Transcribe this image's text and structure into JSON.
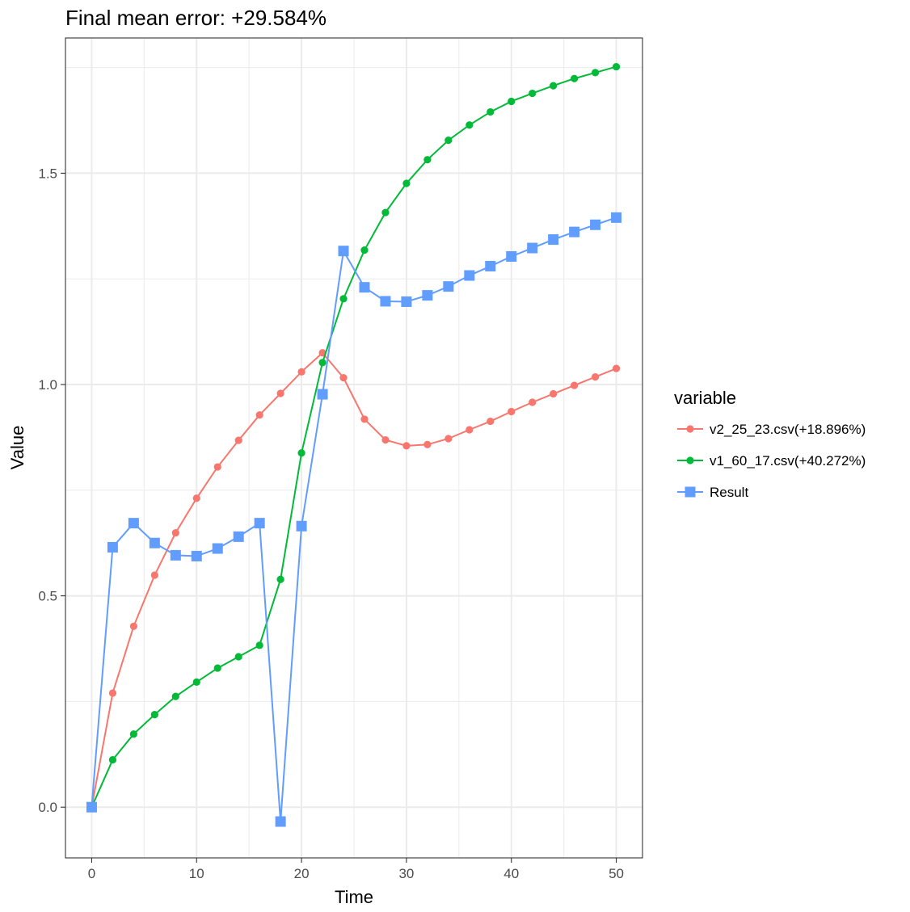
{
  "chart_data": {
    "type": "line",
    "title": "Final mean error: +29.584%",
    "xlabel": "Time",
    "ylabel": "Value",
    "xlim": [
      -2.5,
      52.5
    ],
    "ylim": [
      -0.12,
      1.82
    ],
    "x_ticks": [
      0,
      10,
      20,
      30,
      40,
      50
    ],
    "y_ticks": [
      0.0,
      0.5,
      1.0,
      1.5
    ],
    "y_tick_labels": [
      "0.0",
      "0.5",
      "1.0",
      "1.5"
    ],
    "grid": true,
    "legend": {
      "title": "variable",
      "placement": "right"
    },
    "x": [
      0,
      2,
      4,
      6,
      8,
      10,
      12,
      14,
      16,
      18,
      20,
      22,
      24,
      26,
      28,
      30,
      32,
      34,
      36,
      38,
      40,
      42,
      44,
      46,
      48,
      50
    ],
    "series": [
      {
        "name": "v2_25_23.csv(+18.896%)",
        "color": "#f8766d",
        "marker": "circle",
        "values": [
          0.0,
          0.27,
          0.428,
          0.549,
          0.649,
          0.731,
          0.805,
          0.868,
          0.928,
          0.979,
          1.03,
          1.075,
          1.016,
          0.918,
          0.869,
          0.855,
          0.858,
          0.872,
          0.893,
          0.913,
          0.936,
          0.958,
          0.978,
          0.998,
          1.018,
          1.038
        ]
      },
      {
        "name": "v1_60_17.csv(+40.272%)",
        "color": "#00ba38",
        "marker": "circle",
        "values": [
          0.0,
          0.112,
          0.173,
          0.219,
          0.262,
          0.296,
          0.329,
          0.356,
          0.383,
          0.539,
          0.838,
          1.052,
          1.203,
          1.318,
          1.407,
          1.476,
          1.532,
          1.578,
          1.614,
          1.645,
          1.67,
          1.689,
          1.707,
          1.724,
          1.738,
          1.752
        ]
      },
      {
        "name": "Result",
        "color": "#619cff",
        "marker": "square",
        "values": [
          0.0,
          0.615,
          0.672,
          0.625,
          0.596,
          0.594,
          0.612,
          0.64,
          0.672,
          -0.034,
          0.665,
          0.977,
          1.316,
          1.23,
          1.197,
          1.196,
          1.211,
          1.232,
          1.258,
          1.28,
          1.303,
          1.323,
          1.343,
          1.361,
          1.378,
          1.395
        ]
      }
    ]
  }
}
